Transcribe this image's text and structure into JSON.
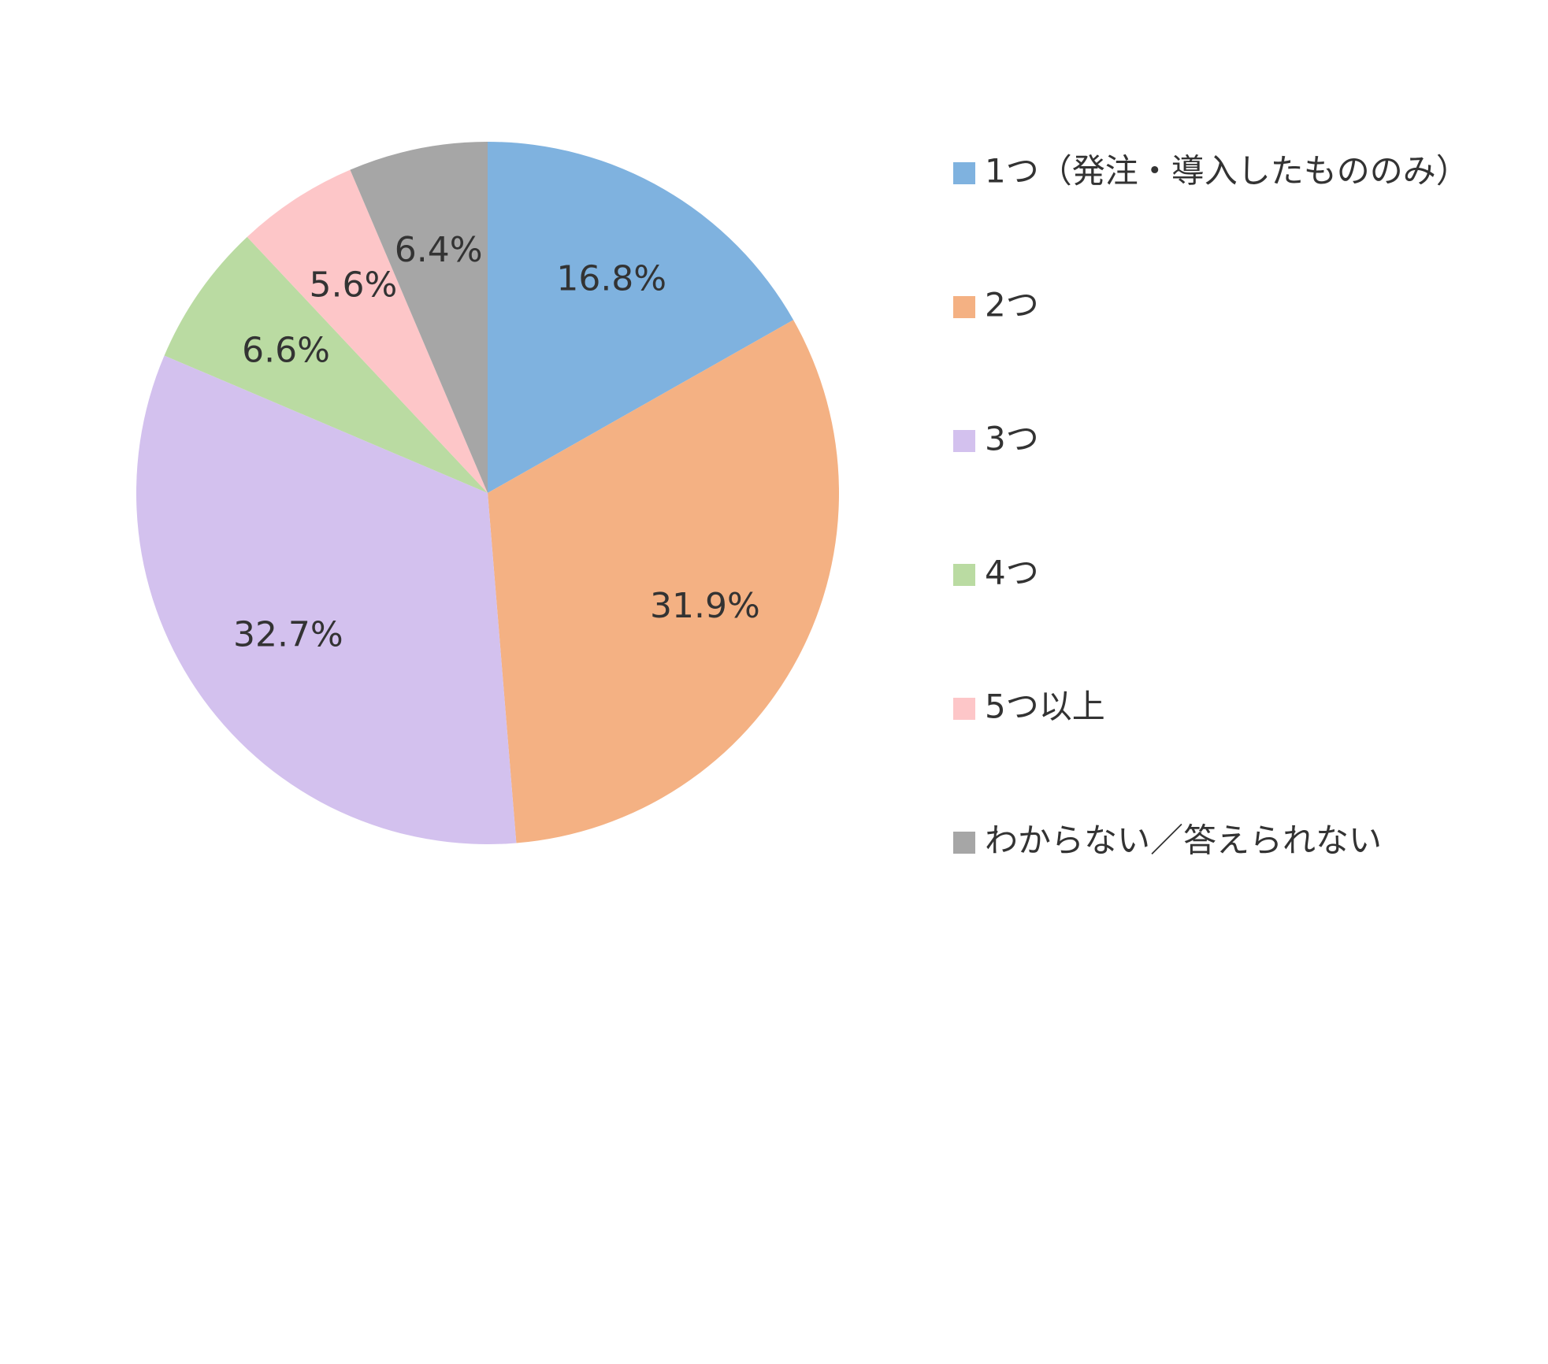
{
  "chart_data": {
    "type": "pie",
    "categories": [
      "1つ（発注・導入したもののみ）",
      "2つ",
      "3つ",
      "4つ",
      "5つ以上",
      "わからない／答えられない"
    ],
    "values": [
      16.8,
      31.9,
      32.7,
      6.6,
      5.6,
      6.4
    ],
    "value_labels": [
      "16.8%",
      "31.9%",
      "32.7%",
      "6.6%",
      "5.6%",
      "6.4%"
    ],
    "colors": [
      "#7fb2df",
      "#f4b183",
      "#d3c1ee",
      "#badba2",
      "#fdc6c8",
      "#a6a6a6"
    ],
    "legend": "right"
  }
}
